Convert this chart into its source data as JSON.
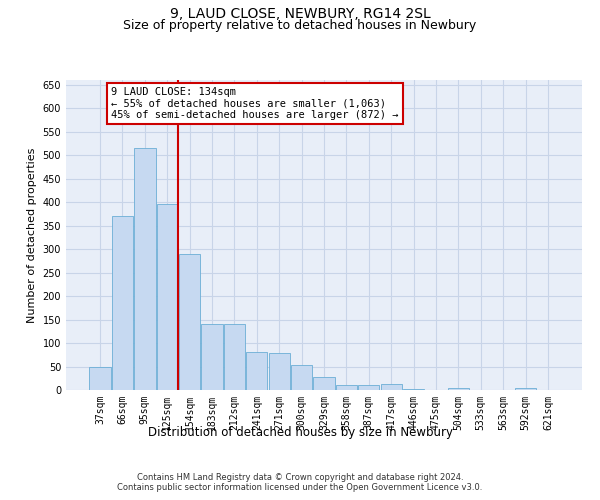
{
  "title": "9, LAUD CLOSE, NEWBURY, RG14 2SL",
  "subtitle": "Size of property relative to detached houses in Newbury",
  "xlabel": "Distribution of detached houses by size in Newbury",
  "ylabel": "Number of detached properties",
  "footer_line1": "Contains HM Land Registry data © Crown copyright and database right 2024.",
  "footer_line2": "Contains public sector information licensed under the Open Government Licence v3.0.",
  "annotation_line1": "9 LAUD CLOSE: 134sqm",
  "annotation_line2": "← 55% of detached houses are smaller (1,063)",
  "annotation_line3": "45% of semi-detached houses are larger (872) →",
  "bar_color": "#c6d9f1",
  "bar_edge_color": "#6baed6",
  "vline_color": "#cc0000",
  "categories": [
    "37sqm",
    "66sqm",
    "95sqm",
    "125sqm",
    "154sqm",
    "183sqm",
    "212sqm",
    "241sqm",
    "271sqm",
    "300sqm",
    "329sqm",
    "358sqm",
    "387sqm",
    "417sqm",
    "446sqm",
    "475sqm",
    "504sqm",
    "533sqm",
    "563sqm",
    "592sqm",
    "621sqm"
  ],
  "values": [
    50,
    370,
    515,
    395,
    290,
    140,
    140,
    80,
    78,
    53,
    28,
    11,
    10,
    12,
    3,
    0,
    5,
    0,
    0,
    4,
    0
  ],
  "ylim": [
    0,
    660
  ],
  "yticks": [
    0,
    50,
    100,
    150,
    200,
    250,
    300,
    350,
    400,
    450,
    500,
    550,
    600,
    650
  ],
  "grid_color": "#c8d4e8",
  "background_color": "#e8eef8",
  "annotation_box_facecolor": "#ffffff",
  "annotation_box_edgecolor": "#cc0000",
  "title_fontsize": 10,
  "subtitle_fontsize": 9,
  "tick_fontsize": 7,
  "ylabel_fontsize": 8,
  "xlabel_fontsize": 8.5,
  "annot_fontsize": 7.5,
  "footer_fontsize": 6,
  "vline_x_index": 3.5
}
